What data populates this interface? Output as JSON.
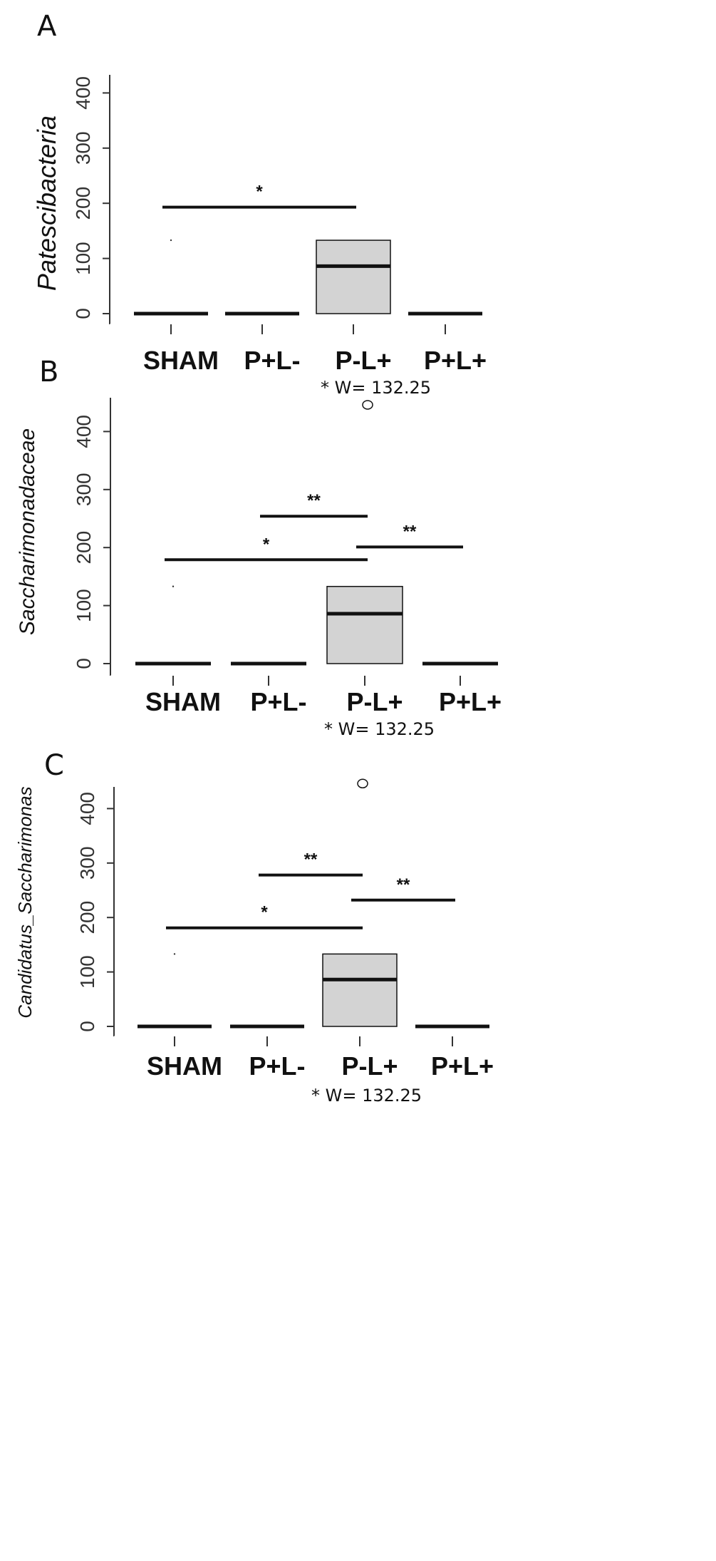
{
  "chart_data": [
    {
      "type": "boxplot",
      "panel": "A",
      "ylabel": "Patescibacteria",
      "categories": [
        "SHAM",
        "P+L-",
        "P-L+",
        "P+L+"
      ],
      "yticks": [
        0,
        100,
        200,
        300,
        400
      ],
      "ylim": [
        0,
        420
      ],
      "boxes": [
        {
          "q1": 0,
          "median": 0,
          "q3": 0
        },
        {
          "q1": 0,
          "median": 0,
          "q3": 0
        },
        {
          "q1": 0,
          "median": 86,
          "q3": 133
        },
        {
          "q1": 0,
          "median": 0,
          "q3": 0
        }
      ],
      "tiny_marks": [
        {
          "cat": 0,
          "y": 133
        }
      ],
      "outliers": [],
      "comparisons": [
        {
          "from": 0,
          "to": 2,
          "y": 193,
          "label": "*"
        }
      ],
      "note": "* W= 132.25"
    },
    {
      "type": "boxplot",
      "panel": "B",
      "ylabel": "Saccharimonadaceae",
      "categories": [
        "SHAM",
        "P+L-",
        "P-L+",
        "P+L+"
      ],
      "yticks": [
        0,
        100,
        200,
        300,
        400
      ],
      "ylim": [
        0,
        460
      ],
      "boxes": [
        {
          "q1": 0,
          "median": 0,
          "q3": 0
        },
        {
          "q1": 0,
          "median": 0,
          "q3": 0
        },
        {
          "q1": 0,
          "median": 86,
          "q3": 133
        },
        {
          "q1": 0,
          "median": 0,
          "q3": 0
        }
      ],
      "tiny_marks": [
        {
          "cat": 0,
          "y": 133
        }
      ],
      "outliers": [
        {
          "cat": 2,
          "y": 446
        }
      ],
      "comparisons": [
        {
          "from": 1,
          "to": 2,
          "y": 254,
          "label": "**"
        },
        {
          "from": 0,
          "to": 2,
          "y": 179,
          "label": "*"
        },
        {
          "from": 2,
          "to": 3,
          "y": 201,
          "label": "**"
        }
      ],
      "note": "* W= 132.25"
    },
    {
      "type": "boxplot",
      "panel": "C",
      "ylabel": "Candidatus_Saccharimonas",
      "categories": [
        "SHAM",
        "P+L-",
        "P-L+",
        "P+L+"
      ],
      "yticks": [
        0,
        100,
        200,
        300,
        400
      ],
      "ylim": [
        0,
        460
      ],
      "boxes": [
        {
          "q1": 0,
          "median": 0,
          "q3": 0
        },
        {
          "q1": 0,
          "median": 0,
          "q3": 0
        },
        {
          "q1": 0,
          "median": 86,
          "q3": 133
        },
        {
          "q1": 0,
          "median": 0,
          "q3": 0
        }
      ],
      "tiny_marks": [
        {
          "cat": 0,
          "y": 133
        }
      ],
      "outliers": [
        {
          "cat": 2,
          "y": 446
        }
      ],
      "comparisons": [
        {
          "from": 1,
          "to": 2,
          "y": 278,
          "label": "**"
        },
        {
          "from": 2,
          "to": 3,
          "y": 232,
          "label": "**"
        },
        {
          "from": 0,
          "to": 2,
          "y": 181,
          "label": "*"
        }
      ],
      "note": "* W= 132.25"
    }
  ],
  "colors": {
    "box_fill": "#d3d3d3",
    "line": "#111111"
  }
}
